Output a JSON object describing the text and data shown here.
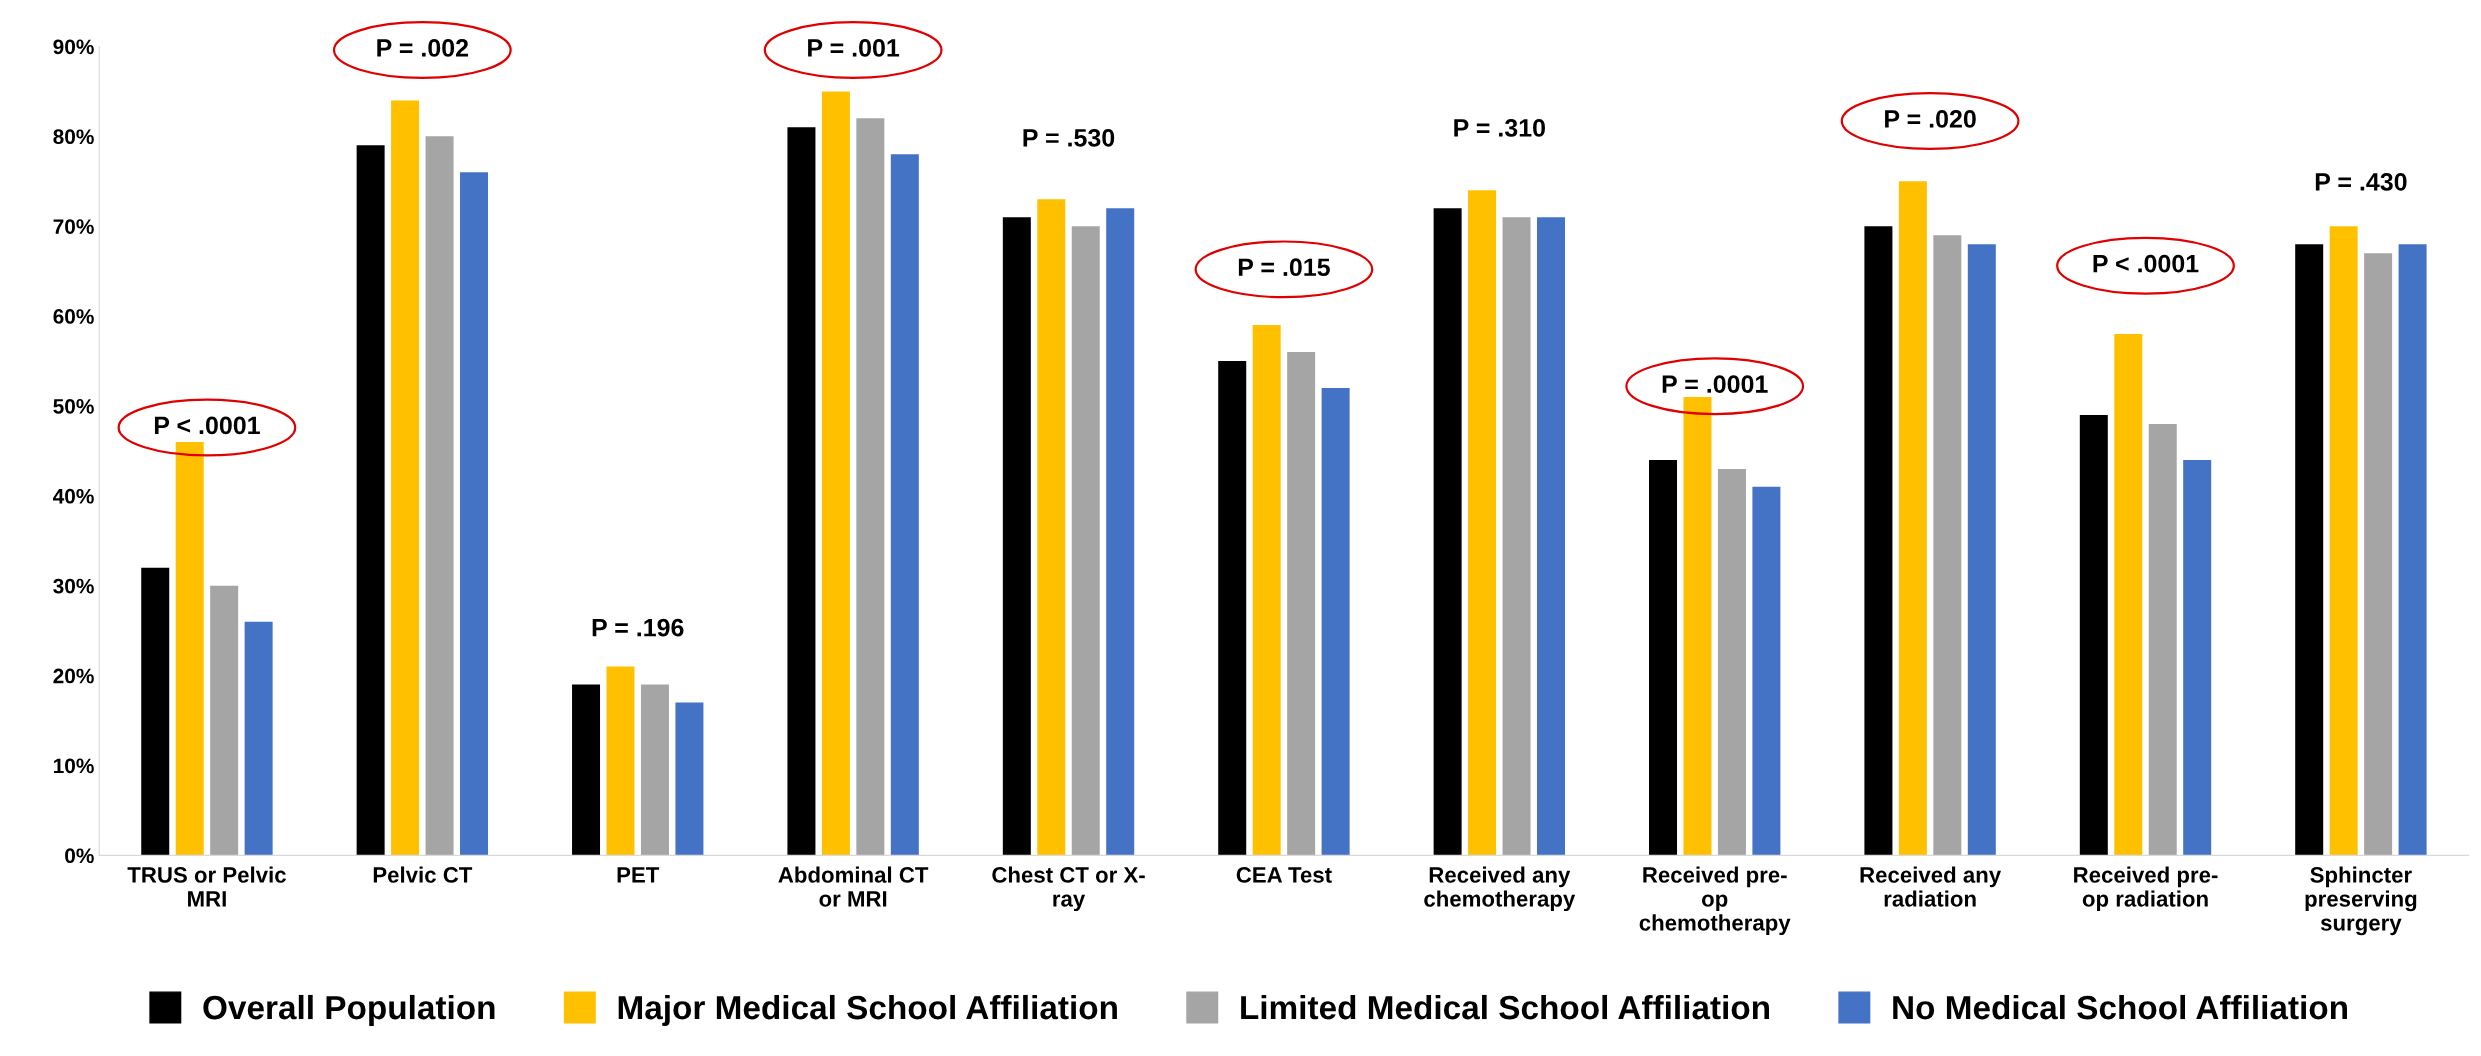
{
  "chart_data": {
    "type": "bar",
    "categories": [
      "TRUS or Pelvic\nMRI",
      "Pelvic CT",
      "PET",
      "Abdominal CT\nor MRI",
      "Chest CT or X-\nray",
      "CEA Test",
      "Received any\nchemotherapy",
      "Received pre-\nop\nchemotherapy",
      "Received any\nradiation",
      "Received pre-\nop radiation",
      "Sphincter\npreserving\nsurgery"
    ],
    "series": [
      {
        "name": "Overall Population",
        "color": "#000000",
        "values": [
          32,
          79,
          19,
          81,
          71,
          55,
          72,
          44,
          70,
          49,
          68
        ]
      },
      {
        "name": "Major Medical School Affiliation",
        "color": "#ffc000",
        "values": [
          46,
          84,
          21,
          85,
          73,
          59,
          74,
          51,
          75,
          58,
          70
        ]
      },
      {
        "name": "Limited Medical School Affiliation",
        "color": "#a5a5a5",
        "values": [
          30,
          80,
          19,
          82,
          70,
          56,
          71,
          43,
          69,
          48,
          67
        ]
      },
      {
        "name": "No Medical School Affiliation",
        "color": "#4472c4",
        "values": [
          26,
          76,
          17,
          78,
          72,
          52,
          71,
          41,
          68,
          44,
          68
        ]
      }
    ],
    "ylim": [
      0,
      90
    ],
    "yticks": [
      {
        "value": 0,
        "label": "0%"
      },
      {
        "value": 10,
        "label": "10%"
      },
      {
        "value": 20,
        "label": "20%"
      },
      {
        "value": 30,
        "label": "30%"
      },
      {
        "value": 40,
        "label": "40%"
      },
      {
        "value": 50,
        "label": "50%"
      },
      {
        "value": 60,
        "label": "60%"
      },
      {
        "value": 70,
        "label": "70%"
      },
      {
        "value": 80,
        "label": "80%"
      },
      {
        "value": 90,
        "label": "90%"
      }
    ],
    "grid": false,
    "legend": "bottom",
    "annotations": [
      "P < .0001",
      "P = .002",
      "P = .196",
      "P = .001",
      "P = .530",
      "P = .015",
      "P = .310",
      "P = .0001",
      "P = .020",
      "P < .0001",
      "P = .430"
    ]
  }
}
